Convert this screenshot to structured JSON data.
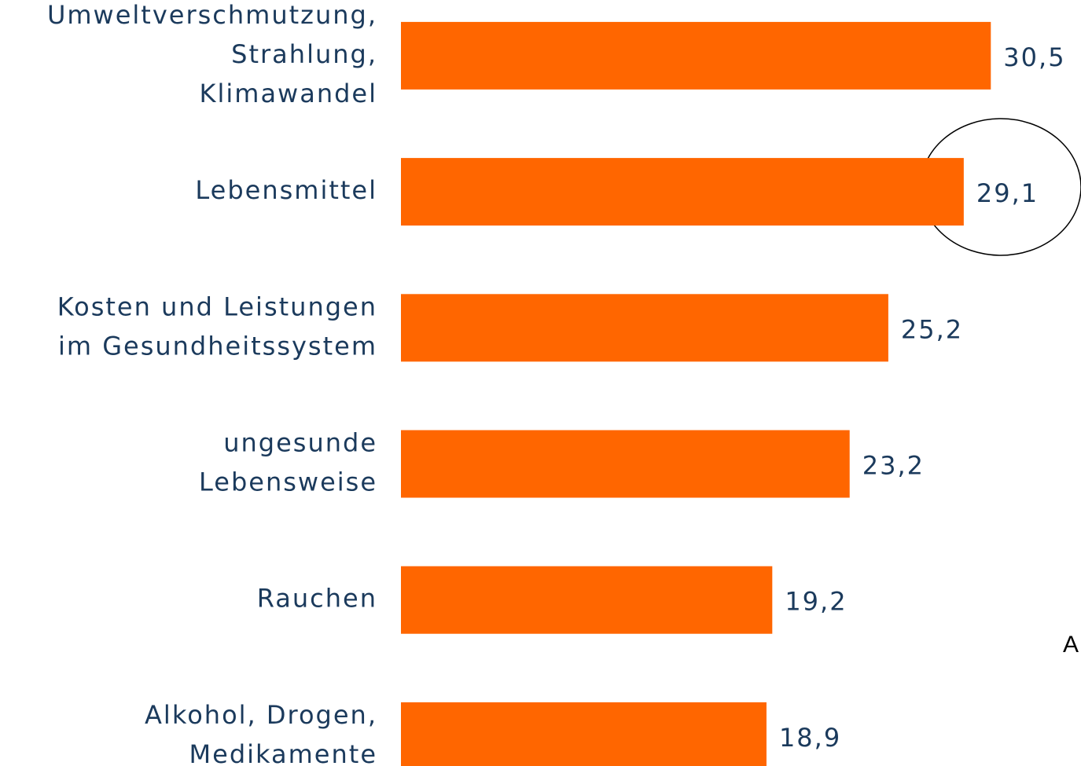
{
  "chart_data": {
    "type": "bar",
    "orientation": "horizontal",
    "categories": [
      [
        "Umweltverschmutzung,",
        "Strahlung,",
        "Klimawandel"
      ],
      [
        "Lebensmittel"
      ],
      [
        "Kosten und Leistungen",
        "im Gesundheitssystem"
      ],
      [
        "ungesunde",
        "Lebensweise"
      ],
      [
        "Rauchen"
      ],
      [
        "Alkohol, Drogen,",
        "Medikamente"
      ]
    ],
    "values": [
      30.5,
      29.1,
      25.2,
      23.2,
      19.2,
      18.9
    ],
    "value_labels": [
      "30,5",
      "29,1",
      "25,2",
      "23,2",
      "19,2",
      "18,9"
    ],
    "color": "#ff6600",
    "xlim": [
      0,
      35
    ],
    "annotations": [
      "A"
    ]
  }
}
